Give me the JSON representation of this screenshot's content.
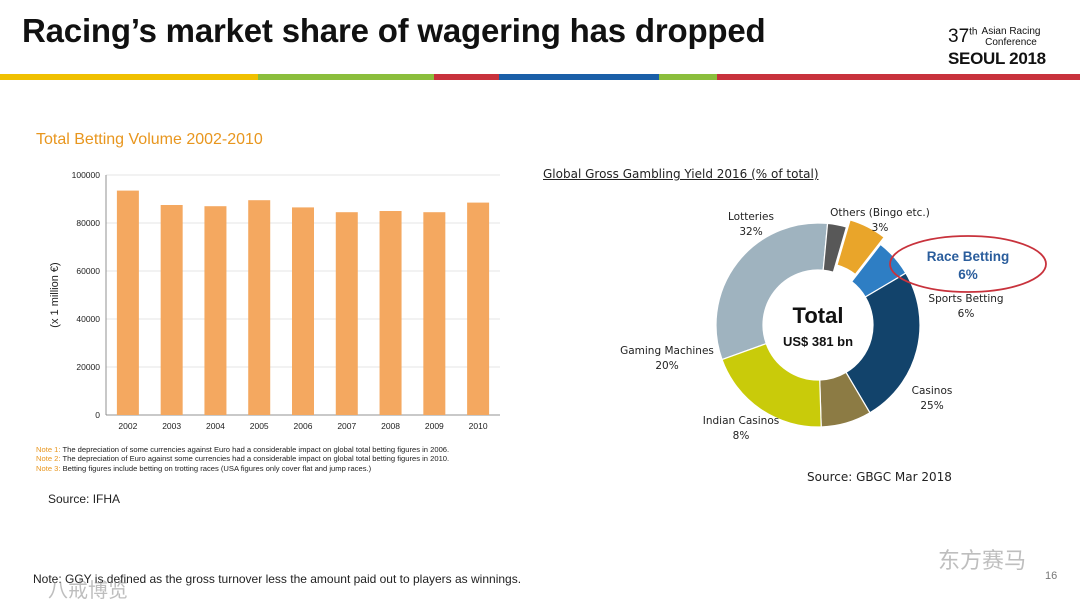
{
  "header": {
    "title": "Racing’s market share of wagering has dropped",
    "logo": {
      "num": "37",
      "num_sup": "th",
      "conf_line1": "Asian Racing",
      "conf_line2": "Conference",
      "city": "SEOUL 2018"
    },
    "band_colors": [
      "#f0c000",
      "#8bbe3c",
      "#c8323c",
      "#1a5fa8",
      "#8bbe3c",
      "#c8323c"
    ]
  },
  "left_chart": {
    "title": "Total Betting Volume 2002-2010",
    "notes": [
      {
        "label": "Note 1:",
        "text": " The depreciation of some currencies against Euro had a considerable impact on global total betting figures in 2006."
      },
      {
        "label": "Note 2:",
        "text": " The depreciation of Euro against some currencies had a considerable impact on global total betting figures in 2010."
      },
      {
        "label": "Note 3:",
        "text": " Betting figures include betting on trotting races (USA figures only cover flat and jump races.)"
      }
    ],
    "source": "Source: IFHA"
  },
  "right_chart": {
    "title": "Global Gross Gambling Yield 2016 (% of total)",
    "center_line1": "Total",
    "center_line2": "US$ 381 bn",
    "source": "Source: GBGC Mar 2018"
  },
  "footer": {
    "note": "Note: GGY is defined as the gross turnover less the amount paid out to players as winnings.",
    "page_number": "16",
    "watermark_left": "八戒博览",
    "watermark_right": "东方赛马"
  },
  "chart_data": [
    {
      "type": "bar",
      "title": "Total Betting Volume 2002-2010",
      "xlabel": "",
      "ylabel": "(x 1 million €)",
      "categories": [
        "2002",
        "2003",
        "2004",
        "2005",
        "2006",
        "2007",
        "2008",
        "2009",
        "2010"
      ],
      "values": [
        93500,
        87500,
        87000,
        89500,
        86500,
        84500,
        85000,
        84500,
        88500
      ],
      "yticks": [
        0,
        20000,
        40000,
        60000,
        80000,
        100000
      ],
      "ylim": [
        0,
        100000
      ],
      "bar_color": "#f4a860",
      "grid": true
    },
    {
      "type": "pie",
      "title": "Global Gross Gambling Yield 2016 (% of total)",
      "slices": [
        {
          "name": "Lotteries",
          "value": 32,
          "label": "32%",
          "color": "#9fb3bf"
        },
        {
          "name": "Others (Bingo etc.)",
          "value": 3,
          "label": "3%",
          "color": "#585858"
        },
        {
          "name": "Race Betting",
          "value": 6,
          "label": "6%",
          "color": "#e9a52a"
        },
        {
          "name": "Sports Betting",
          "value": 6,
          "label": "6%",
          "color": "#2e7ec4"
        },
        {
          "name": "Casinos",
          "value": 25,
          "label": "25%",
          "color": "#12436b"
        },
        {
          "name": "Indian Casinos",
          "value": 8,
          "label": "8%",
          "color": "#8c7b44"
        },
        {
          "name": "Gaming Machines",
          "value": 20,
          "label": "20%",
          "color": "#c9cb0a"
        }
      ],
      "highlight": "Race Betting",
      "highlight_color": "#c8323c",
      "highlight_text_color": "#2a5d9c"
    }
  ]
}
